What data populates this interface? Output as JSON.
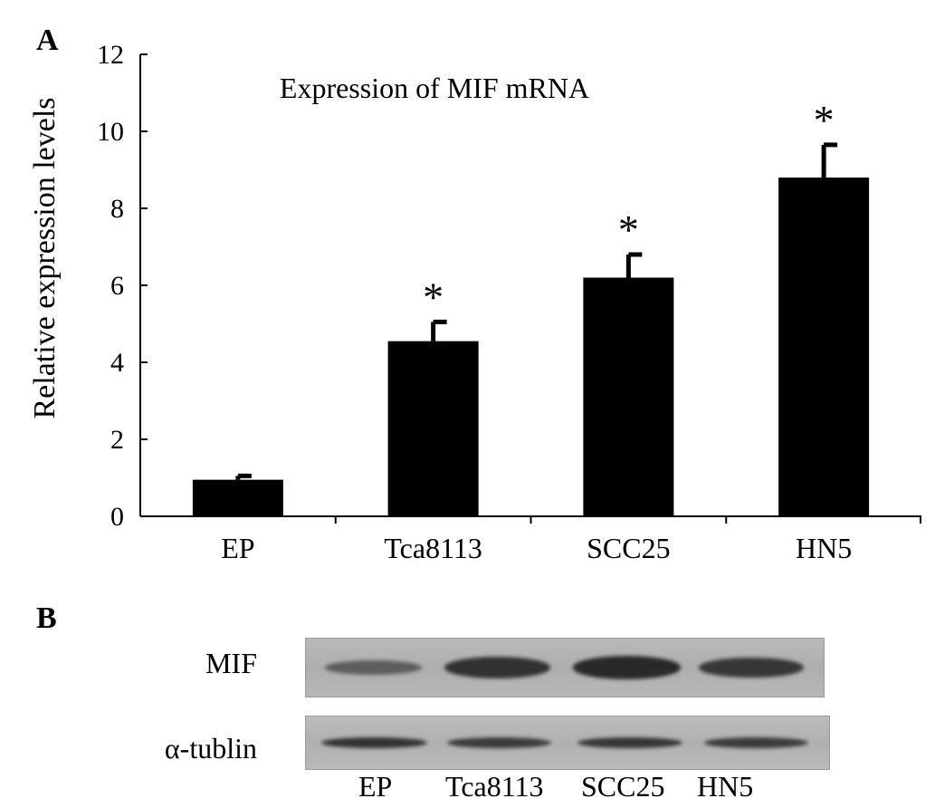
{
  "panel_a": {
    "letter": "A",
    "chart_data": {
      "type": "bar",
      "title": "Expression of MIF mRNA",
      "xlabel": "",
      "ylabel": "Relative expression levels",
      "categories": [
        "EP",
        "Tca8113",
        "SCC25",
        "HN5"
      ],
      "values": [
        0.95,
        4.55,
        6.2,
        8.8
      ],
      "errors": [
        0.1,
        0.5,
        0.6,
        0.85
      ],
      "significance": [
        "",
        "*",
        "*",
        "*"
      ],
      "ylim": [
        0,
        12
      ],
      "yticks": [
        0,
        2,
        4,
        6,
        8,
        10,
        12
      ],
      "ytick_labels": [
        "0",
        "2",
        "4",
        "6",
        "8",
        "10",
        "12"
      ],
      "grid": false,
      "bar_color": "#000000"
    }
  },
  "panel_b": {
    "letter": "B",
    "rows": [
      {
        "label": "MIF",
        "intensities": [
          0.35,
          0.85,
          0.95,
          0.8
        ]
      },
      {
        "label": "α-tublin",
        "intensities": [
          0.85,
          0.75,
          0.8,
          0.75
        ]
      }
    ],
    "lanes": [
      "EP",
      "Tca8113",
      "SCC25",
      "HN5"
    ],
    "band_color": "#1e1e1e",
    "background_color": "#b4b4b4"
  }
}
